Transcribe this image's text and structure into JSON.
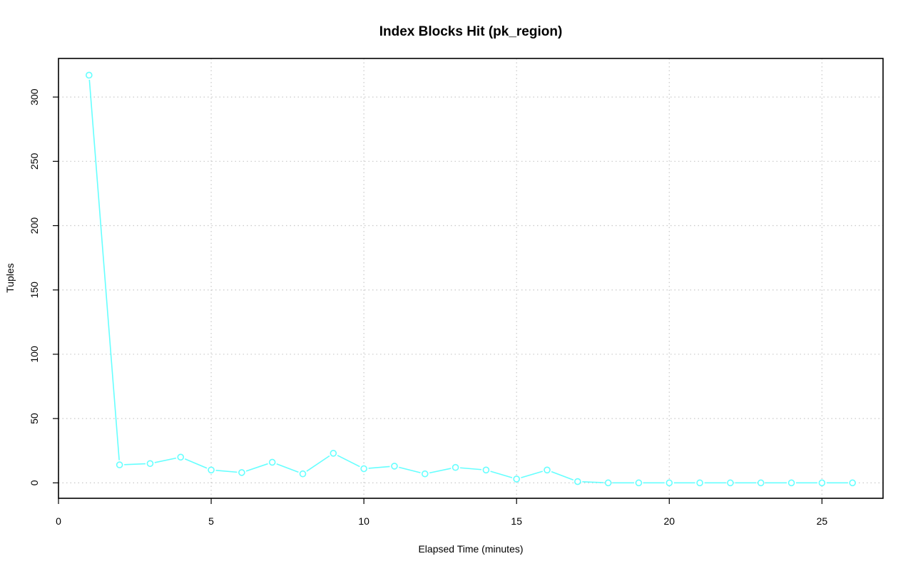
{
  "chart_data": {
    "type": "line",
    "title": "Index Blocks Hit (pk_region)",
    "xlabel": "Elapsed Time (minutes)",
    "ylabel": "Tuples",
    "xlim": [
      0,
      27
    ],
    "ylim": [
      -12,
      330
    ],
    "xticks": [
      0,
      5,
      10,
      15,
      20,
      25
    ],
    "yticks": [
      0,
      50,
      100,
      150,
      200,
      250,
      300
    ],
    "grid": true,
    "series": [
      {
        "color": "#66ffff",
        "x": [
          1,
          2,
          3,
          4,
          5,
          6,
          7,
          8,
          9,
          10,
          11,
          12,
          13,
          14,
          15,
          16,
          17,
          18,
          19,
          20,
          21,
          22,
          23,
          24,
          25,
          26
        ],
        "y": [
          317,
          14,
          15,
          20,
          10,
          8,
          16,
          7,
          23,
          11,
          13,
          7,
          12,
          10,
          3,
          10,
          1,
          0,
          0,
          0,
          0,
          0,
          0,
          0,
          0,
          0
        ]
      }
    ]
  }
}
